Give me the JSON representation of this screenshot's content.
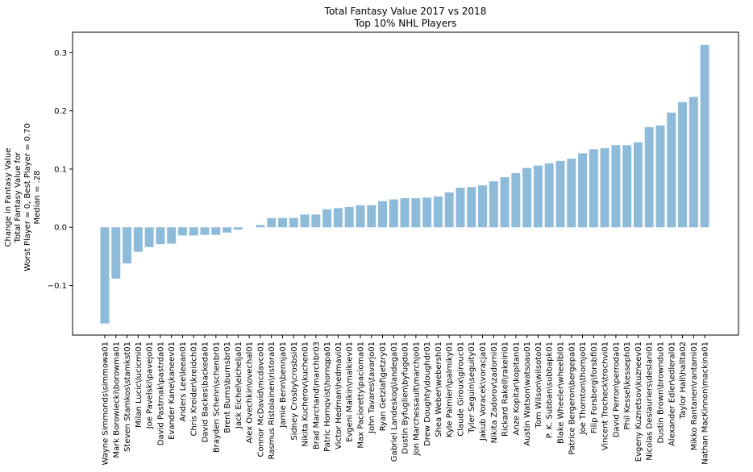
{
  "chart_data": {
    "type": "bar",
    "title": "Total Fantasy Value 2017 vs 2018",
    "subtitle": "Top 10% NHL Players",
    "ylabel_lines": [
      "Change in Fantasy Value",
      "Total Fantasy Value for",
      "Worst Player = 0, Best Player = 0.70",
      "Median = .28"
    ],
    "xlabel": "",
    "ylim": [
      -0.185,
      0.335
    ],
    "yticks": [
      -0.1,
      0.0,
      0.1,
      0.2,
      0.3
    ],
    "ytick_labels": [
      "−0.1",
      "0.0",
      "0.1",
      "0.2",
      "0.3"
    ],
    "grid": false,
    "bar_color": "#8fbbdb",
    "categories": [
      "Wayne Simmonds\\simmowa01",
      "Mark Borowiecki\\borowma01",
      "Steven Stamkos\\stamkst01",
      "Milan Lucic\\lucicmi01",
      "Joe Pavelski\\pavejo01",
      "David Pastrnak\\pastrda01",
      "Evander Kane\\kaneev01",
      "Anders Lee\\leean01",
      "Chris Kreider\\kreidch01",
      "David Backes\\backeda01",
      "Brayden Schenn\\schenbr01",
      "Brent Burns\\burnsbr01",
      "Jack Eichel\\eichelja01",
      "Alex Ovechkin\\ovechal01",
      "Connor McDavid\\mcdavco01",
      "Rasmus Ristolainen\\ristora01",
      "Jamie Benn\\bennja01",
      "Sidney Crosby\\crosbsi01",
      "Nikita Kucherov\\kuchen01",
      "Brad Marchand\\marchbr03",
      "Patric Hornqvist\\hornqpa01",
      "Victor Hedman\\hedmavi01",
      "Evgeni Malkin\\malkiev01",
      "Max Pacioretty\\paciomа01",
      "John Tavares\\tavarjo01",
      "Ryan Getzlaf\\getzry01",
      "Gabriel Landeskog\\landega01",
      "Dustin Byfuglien\\byfugdu01",
      "Jon Marchessault\\marchjo01",
      "Drew Doughty\\doughdr01",
      "Shea Weber\\webersh01",
      "Kyle Palmieri\\palmiky01",
      "Claude Giroux\\girouc01",
      "Tyler Seguin\\seguity01",
      "Jakub Voracek\\voracja01",
      "Nikita Zadorov\\zadorni01",
      "Rickard Rakell\\rakelri01",
      "Anze Kopitar\\kopitan01",
      "Austin Watson\\watsoau01",
      "Tom Wilson\\wilsoto01",
      "P. K. Subban\\subbapk01",
      "Blake Wheeler\\wheelbl01",
      "Patrice Bergeron\\bergepa01",
      "Joe Thornton\\thornjo01",
      "Filip Forsberg\\forsbfi01",
      "Vincent Trocheck\\trochvi01",
      "David Perron\\perroda01",
      "Phil Kessel\\kesseph01",
      "Evgeny Kuznetsov\\kuzneev01",
      "Nicolas Deslauriers\\deslani01",
      "Dustin Brown\\browndu01",
      "Alexander Edler\\edleral01",
      "Taylor Hall\\hallta02",
      "Mikko Rantanen\\rantami01",
      "Nathan MacKinnon\\mackina01"
    ],
    "values": [
      -0.165,
      -0.088,
      -0.062,
      -0.042,
      -0.034,
      -0.029,
      -0.028,
      -0.014,
      -0.014,
      -0.013,
      -0.013,
      -0.009,
      -0.004,
      0.0,
      0.004,
      0.016,
      0.016,
      0.016,
      0.022,
      0.022,
      0.031,
      0.033,
      0.035,
      0.038,
      0.038,
      0.045,
      0.048,
      0.05,
      0.05,
      0.051,
      0.053,
      0.06,
      0.068,
      0.069,
      0.072,
      0.079,
      0.086,
      0.093,
      0.102,
      0.106,
      0.11,
      0.114,
      0.118,
      0.127,
      0.134,
      0.136,
      0.141,
      0.141,
      0.146,
      0.172,
      0.175,
      0.197,
      0.215,
      0.224,
      0.313
    ]
  }
}
